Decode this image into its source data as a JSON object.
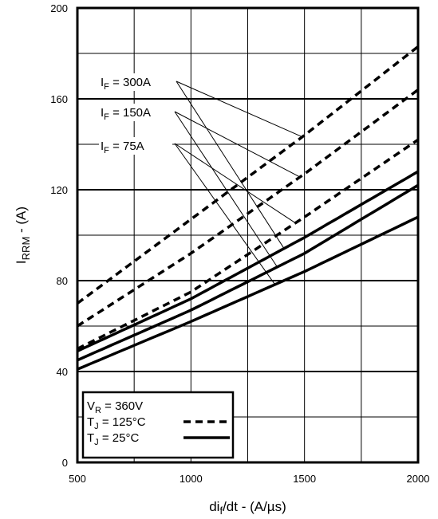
{
  "chart_data": {
    "type": "line",
    "xlim": [
      500,
      2000
    ],
    "ylim": [
      0,
      200
    ],
    "x_ticks": [
      "500",
      "1000",
      "1500",
      "2000"
    ],
    "y_ticks": [
      "0",
      "40",
      "80",
      "120",
      "160",
      "200"
    ],
    "xlabel": {
      "main": "di",
      "sub": "f",
      "rest": "/dt - (A/µs)"
    },
    "ylabel": {
      "main": "I",
      "sub": "RRM",
      "rest": " - (A)"
    },
    "grid": true,
    "series": [
      {
        "name": "I_F = 300A, T_J = 125°C",
        "style": "dashed",
        "x": [
          500,
          1000,
          1500,
          2000
        ],
        "y": [
          70,
          107,
          144,
          183
        ]
      },
      {
        "name": "I_F = 150A, T_J = 125°C",
        "style": "dashed",
        "x": [
          500,
          1000,
          1500,
          2000
        ],
        "y": [
          60,
          92,
          127,
          164
        ]
      },
      {
        "name": "I_F = 75A, T_J = 125°C",
        "style": "dashed",
        "x": [
          500,
          1000,
          1500,
          2000
        ],
        "y": [
          50,
          75,
          108,
          142
        ]
      },
      {
        "name": "I_F = 300A, T_J = 25°C",
        "style": "solid",
        "x": [
          500,
          1000,
          1500,
          2000
        ],
        "y": [
          49,
          72,
          99,
          128
        ]
      },
      {
        "name": "I_F = 150A, T_J = 25°C",
        "style": "solid",
        "x": [
          500,
          1000,
          1500,
          2000
        ],
        "y": [
          45,
          67,
          92,
          122
        ]
      },
      {
        "name": "I_F = 75A, T_J = 25°C",
        "style": "solid",
        "x": [
          500,
          1000,
          1500,
          2000
        ],
        "y": [
          41,
          62,
          84,
          108
        ]
      }
    ],
    "annotations": [
      {
        "main": "I",
        "sub": "F",
        "rest": " = 300A",
        "targets": [
          0,
          3
        ]
      },
      {
        "main": "I",
        "sub": "F",
        "rest": " = 150A",
        "targets": [
          1,
          4
        ]
      },
      {
        "main": "I",
        "sub": "F",
        "rest": " = 75A",
        "targets": [
          2,
          5
        ]
      }
    ],
    "legend": {
      "placement": "bottom-left",
      "lines": [
        {
          "main": "V",
          "sub": "R",
          "rest": " = 360V",
          "style": "none"
        },
        {
          "main": "T",
          "sub": "J",
          "rest": " = 125°C",
          "style": "dashed"
        },
        {
          "main": "T",
          "sub": "J",
          "rest": " = 25°C",
          "style": "solid"
        }
      ]
    }
  }
}
